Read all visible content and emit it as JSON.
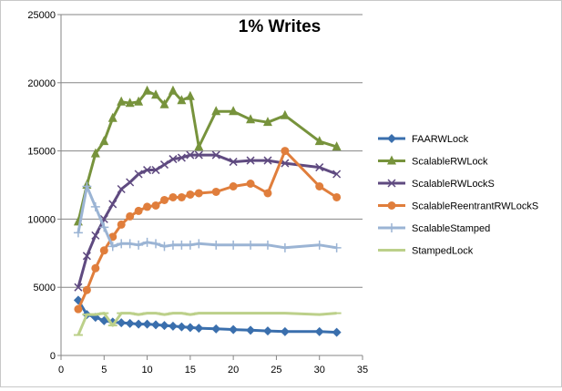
{
  "chart_data": {
    "type": "line",
    "title": "1% Writes",
    "xlabel": "",
    "ylabel": "",
    "xlim": [
      0,
      35
    ],
    "ylim": [
      0,
      25000
    ],
    "x_ticks": [
      "0",
      "5",
      "10",
      "15",
      "20",
      "25",
      "30",
      "35"
    ],
    "y_ticks": [
      "0",
      "5000",
      "10000",
      "15000",
      "20000",
      "25000"
    ],
    "grid": "horizontal",
    "legend_position": "right",
    "series": [
      {
        "name": "FAARWLock",
        "color": "#3a6fad",
        "marker": "diamond",
        "x": [
          2,
          3,
          4,
          5,
          6,
          7,
          8,
          9,
          10,
          11,
          12,
          13,
          14,
          15,
          16,
          18,
          20,
          22,
          24,
          26,
          30,
          32
        ],
        "y": [
          4050,
          3000,
          2800,
          2550,
          2450,
          2400,
          2350,
          2300,
          2300,
          2250,
          2200,
          2150,
          2100,
          2050,
          2000,
          1950,
          1900,
          1850,
          1800,
          1750,
          1750,
          1700
        ]
      },
      {
        "name": "ScalableRWLock",
        "color": "#77933c",
        "marker": "triangle",
        "x": [
          2,
          3,
          4,
          5,
          6,
          7,
          8,
          9,
          10,
          11,
          12,
          13,
          14,
          15,
          16,
          18,
          20,
          22,
          24,
          26,
          30,
          32
        ],
        "y": [
          9800,
          12500,
          14800,
          15700,
          17400,
          18600,
          18500,
          18600,
          19400,
          19100,
          18400,
          19400,
          18700,
          19000,
          15300,
          17900,
          17900,
          17300,
          17100,
          17600,
          15700,
          15300
        ]
      },
      {
        "name": "ScalableRWLockS",
        "color": "#5f4a80",
        "marker": "x",
        "x": [
          2,
          3,
          4,
          5,
          6,
          7,
          8,
          9,
          10,
          11,
          12,
          13,
          14,
          15,
          16,
          18,
          20,
          22,
          24,
          26,
          30,
          32
        ],
        "y": [
          5000,
          7300,
          8800,
          10000,
          11100,
          12200,
          12700,
          13300,
          13600,
          13600,
          14000,
          14400,
          14500,
          14700,
          14700,
          14700,
          14200,
          14300,
          14300,
          14100,
          13800,
          13300
        ]
      },
      {
        "name": "ScalableReentrantRWLockS",
        "color": "#e07e3c",
        "marker": "circle",
        "x": [
          2,
          3,
          4,
          5,
          6,
          7,
          8,
          9,
          10,
          11,
          12,
          13,
          14,
          15,
          16,
          18,
          20,
          22,
          24,
          26,
          30,
          32
        ],
        "y": [
          3400,
          4800,
          6400,
          7700,
          8700,
          9600,
          10200,
          10600,
          10900,
          11000,
          11400,
          11600,
          11600,
          11800,
          11900,
          12000,
          12400,
          12600,
          11900,
          15000,
          12400,
          11600
        ]
      },
      {
        "name": "ScalableStamped",
        "color": "#9bb4d4",
        "marker": "plus",
        "x": [
          2,
          3,
          4,
          5,
          6,
          7,
          8,
          9,
          10,
          11,
          12,
          13,
          14,
          15,
          16,
          18,
          20,
          22,
          24,
          26,
          30,
          32
        ],
        "y": [
          9000,
          12400,
          10900,
          9400,
          8000,
          8200,
          8200,
          8100,
          8300,
          8200,
          8000,
          8100,
          8100,
          8100,
          8200,
          8100,
          8100,
          8100,
          8100,
          7900,
          8100,
          7900
        ]
      },
      {
        "name": "StampedLock",
        "color": "#bcd08a",
        "marker": "dash",
        "x": [
          2,
          3,
          4,
          5,
          6,
          7,
          8,
          9,
          10,
          11,
          12,
          13,
          14,
          15,
          16,
          18,
          20,
          22,
          24,
          26,
          30,
          32
        ],
        "y": [
          1500,
          3000,
          3000,
          3100,
          2200,
          3100,
          3100,
          3000,
          3100,
          3100,
          3000,
          3100,
          3100,
          3000,
          3100,
          3100,
          3100,
          3100,
          3100,
          3100,
          3000,
          3100
        ]
      }
    ]
  }
}
